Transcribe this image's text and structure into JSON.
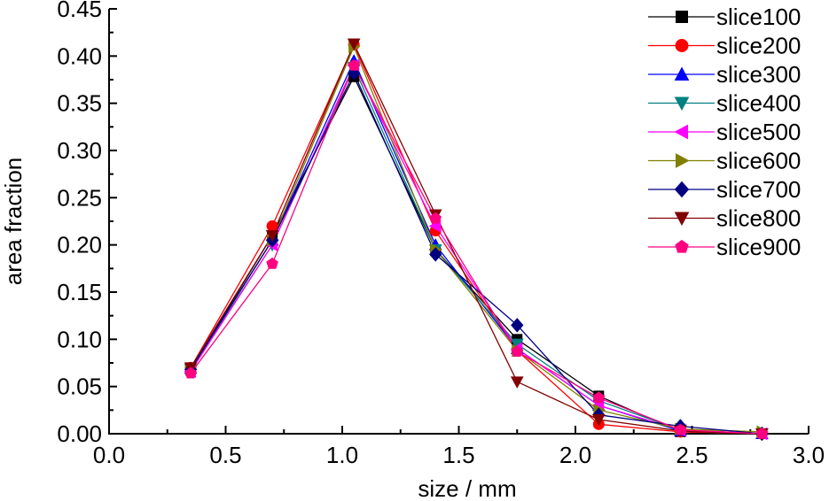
{
  "chart_data": {
    "type": "line",
    "xlabel": "size / mm",
    "ylabel": "area fraction",
    "xlim": [
      0.0,
      3.0
    ],
    "ylim": [
      0.0,
      0.45
    ],
    "x_ticks": [
      "0.0",
      "0.5",
      "1.0",
      "1.5",
      "2.0",
      "2.5",
      "3.0"
    ],
    "y_ticks": [
      "0.00",
      "0.05",
      "0.10",
      "0.15",
      "0.20",
      "0.25",
      "0.30",
      "0.35",
      "0.40",
      "0.45"
    ],
    "grid": false,
    "legend_position": "top-right",
    "x": [
      0.35,
      0.7,
      1.05,
      1.4,
      1.75,
      2.1,
      2.45,
      2.8
    ],
    "series": [
      {
        "name": "slice100",
        "color": "#000000",
        "marker": "square",
        "values": [
          0.068,
          0.21,
          0.378,
          0.195,
          0.1,
          0.04,
          0.002,
          0.0
        ]
      },
      {
        "name": "slice200",
        "color": "#ff0000",
        "marker": "circle",
        "values": [
          0.07,
          0.22,
          0.412,
          0.215,
          0.088,
          0.01,
          0.002,
          0.0
        ]
      },
      {
        "name": "slice300",
        "color": "#0000ff",
        "marker": "triangle-up",
        "values": [
          0.069,
          0.205,
          0.395,
          0.2,
          0.09,
          0.03,
          0.003,
          0.0
        ]
      },
      {
        "name": "slice400",
        "color": "#008080",
        "marker": "triangle-down",
        "values": [
          0.068,
          0.2,
          0.388,
          0.195,
          0.095,
          0.035,
          0.004,
          0.0
        ]
      },
      {
        "name": "slice500",
        "color": "#ff00ff",
        "marker": "triangle-left",
        "values": [
          0.066,
          0.2,
          0.39,
          0.22,
          0.09,
          0.03,
          0.004,
          0.0
        ]
      },
      {
        "name": "slice600",
        "color": "#808000",
        "marker": "triangle-right",
        "values": [
          0.068,
          0.205,
          0.41,
          0.195,
          0.088,
          0.025,
          0.005,
          0.002
        ]
      },
      {
        "name": "slice700",
        "color": "#000080",
        "marker": "diamond",
        "values": [
          0.068,
          0.205,
          0.382,
          0.19,
          0.115,
          0.02,
          0.008,
          0.0
        ]
      },
      {
        "name": "slice800",
        "color": "#800000",
        "marker": "triangle-down",
        "values": [
          0.07,
          0.21,
          0.413,
          0.232,
          0.055,
          0.015,
          0.003,
          0.0
        ]
      },
      {
        "name": "slice900",
        "color": "#ff0080",
        "marker": "pentagon",
        "values": [
          0.064,
          0.18,
          0.39,
          0.228,
          0.087,
          0.038,
          0.004,
          0.0
        ]
      }
    ]
  }
}
